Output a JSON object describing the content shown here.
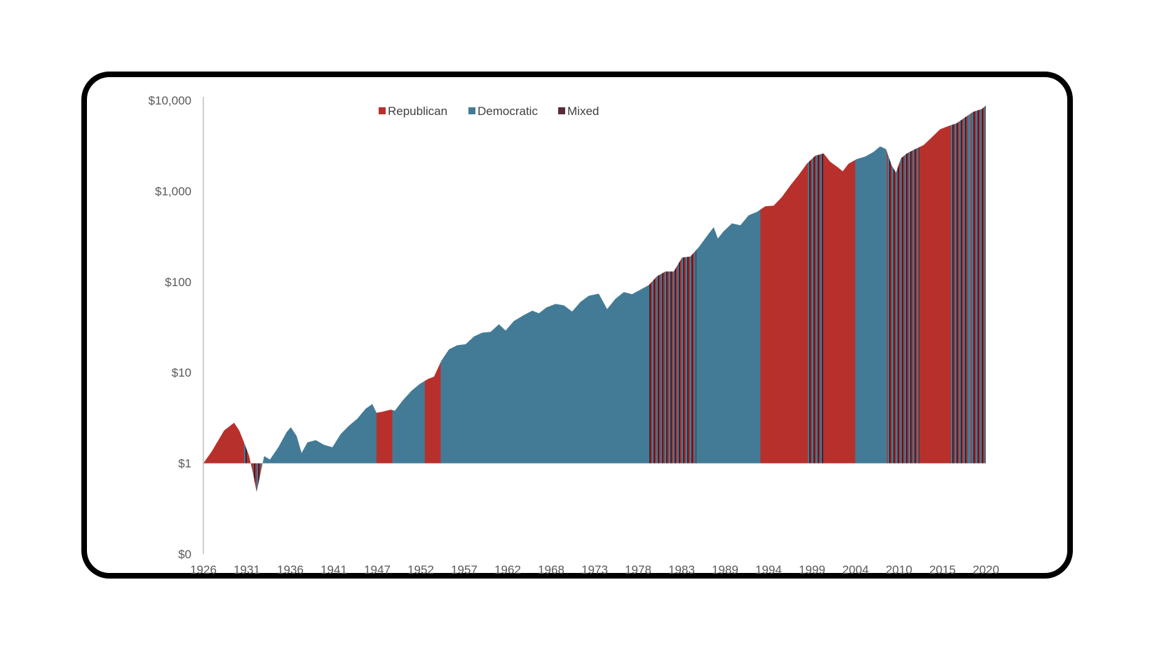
{
  "chart_data": {
    "type": "area",
    "title": "",
    "xlabel": "",
    "ylabel": "",
    "y_scale": "log",
    "ylim": [
      0.1,
      10000
    ],
    "y_ticks": [
      {
        "value": 10000,
        "label": "$10,000"
      },
      {
        "value": 1000,
        "label": "$1,000"
      },
      {
        "value": 100,
        "label": "$100"
      },
      {
        "value": 10,
        "label": "$10"
      },
      {
        "value": 1,
        "label": "$1"
      },
      {
        "value": 0.1,
        "label": "$0"
      }
    ],
    "x_ticks": [
      "1926",
      "1931",
      "1936",
      "1941",
      "1947",
      "1952",
      "1957",
      "1962",
      "1968",
      "1973",
      "1978",
      "1983",
      "1989",
      "1994",
      "1999",
      "2004",
      "2010",
      "2015",
      "2020"
    ],
    "x_range": [
      1926,
      2020
    ],
    "legend": {
      "placement": "top-center",
      "items": [
        {
          "name": "Republican",
          "color": "#b8302c"
        },
        {
          "name": "Democratic",
          "color": "#437b96"
        },
        {
          "name": "Mixed",
          "color": "#5a2a38"
        }
      ]
    },
    "series_points": [
      [
        1926.0,
        1.0
      ],
      [
        1927.0,
        1.35
      ],
      [
        1928.5,
        2.3
      ],
      [
        1929.7,
        2.8
      ],
      [
        1930.3,
        2.3
      ],
      [
        1931.0,
        1.6
      ],
      [
        1931.5,
        1.2
      ],
      [
        1932.0,
        0.75
      ],
      [
        1932.4,
        0.48
      ],
      [
        1932.9,
        0.8
      ],
      [
        1933.3,
        1.2
      ],
      [
        1934.0,
        1.1
      ],
      [
        1935.0,
        1.5
      ],
      [
        1936.0,
        2.2
      ],
      [
        1936.5,
        2.5
      ],
      [
        1937.2,
        2.0
      ],
      [
        1937.8,
        1.3
      ],
      [
        1938.5,
        1.7
      ],
      [
        1939.5,
        1.8
      ],
      [
        1940.5,
        1.6
      ],
      [
        1941.5,
        1.5
      ],
      [
        1942.5,
        2.1
      ],
      [
        1943.5,
        2.6
      ],
      [
        1944.5,
        3.1
      ],
      [
        1945.5,
        4.0
      ],
      [
        1946.3,
        4.5
      ],
      [
        1946.8,
        3.6
      ],
      [
        1947.5,
        3.7
      ],
      [
        1948.5,
        3.9
      ],
      [
        1949.0,
        3.8
      ],
      [
        1950.0,
        5.0
      ],
      [
        1951.0,
        6.3
      ],
      [
        1952.0,
        7.5
      ],
      [
        1953.0,
        8.5
      ],
      [
        1953.7,
        9.0
      ],
      [
        1954.6,
        13.5
      ],
      [
        1955.5,
        18.0
      ],
      [
        1956.5,
        20.0
      ],
      [
        1957.5,
        20.5
      ],
      [
        1958.5,
        25.0
      ],
      [
        1959.5,
        27.5
      ],
      [
        1960.5,
        28.0
      ],
      [
        1961.5,
        34.0
      ],
      [
        1962.3,
        29.0
      ],
      [
        1963.3,
        37.0
      ],
      [
        1964.5,
        43.0
      ],
      [
        1965.5,
        48.0
      ],
      [
        1966.3,
        45.0
      ],
      [
        1967.2,
        52.0
      ],
      [
        1968.3,
        57.0
      ],
      [
        1969.3,
        55.0
      ],
      [
        1970.3,
        47.0
      ],
      [
        1971.3,
        60.0
      ],
      [
        1972.3,
        70.0
      ],
      [
        1973.5,
        74.0
      ],
      [
        1974.5,
        50.0
      ],
      [
        1975.5,
        65.0
      ],
      [
        1976.5,
        77.0
      ],
      [
        1977.5,
        73.0
      ],
      [
        1978.5,
        82.0
      ],
      [
        1979.5,
        92.0
      ],
      [
        1980.5,
        115.0
      ],
      [
        1981.5,
        130.0
      ],
      [
        1982.5,
        130.0
      ],
      [
        1983.5,
        185.0
      ],
      [
        1984.5,
        190.0
      ],
      [
        1985.5,
        240.0
      ],
      [
        1986.5,
        320.0
      ],
      [
        1987.3,
        400.0
      ],
      [
        1987.8,
        300.0
      ],
      [
        1988.5,
        360.0
      ],
      [
        1989.5,
        440.0
      ],
      [
        1990.5,
        420.0
      ],
      [
        1991.5,
        540.0
      ],
      [
        1992.5,
        590.0
      ],
      [
        1993.5,
        680.0
      ],
      [
        1994.5,
        690.0
      ],
      [
        1995.5,
        860.0
      ],
      [
        1996.5,
        1150.0
      ],
      [
        1997.5,
        1500.0
      ],
      [
        1998.5,
        2000.0
      ],
      [
        1999.5,
        2450.0
      ],
      [
        2000.5,
        2600.0
      ],
      [
        2001.3,
        2100.0
      ],
      [
        2002.3,
        1800.0
      ],
      [
        2002.8,
        1650.0
      ],
      [
        2003.5,
        2000.0
      ],
      [
        2004.5,
        2250.0
      ],
      [
        2005.5,
        2400.0
      ],
      [
        2006.5,
        2700.0
      ],
      [
        2007.3,
        3100.0
      ],
      [
        2008.0,
        2900.0
      ],
      [
        2008.7,
        1900.0
      ],
      [
        2009.2,
        1600.0
      ],
      [
        2009.8,
        2300.0
      ],
      [
        2010.5,
        2600.0
      ],
      [
        2011.5,
        2900.0
      ],
      [
        2012.5,
        3200.0
      ],
      [
        2013.5,
        3900.0
      ],
      [
        2014.5,
        4800.0
      ],
      [
        2015.5,
        5200.0
      ],
      [
        2016.5,
        5600.0
      ],
      [
        2017.5,
        6500.0
      ],
      [
        2018.5,
        7500.0
      ],
      [
        2019.5,
        8000.0
      ],
      [
        2020.0,
        8800.0
      ]
    ],
    "segments": [
      {
        "start": 1926.0,
        "end": 1930.8,
        "party": "Republican"
      },
      {
        "start": 1930.8,
        "end": 1931.3,
        "party": "Mixed"
      },
      {
        "start": 1931.3,
        "end": 1932.0,
        "party": "Republican"
      },
      {
        "start": 1932.0,
        "end": 1933.0,
        "party": "Mixed"
      },
      {
        "start": 1933.0,
        "end": 1946.8,
        "party": "Democratic"
      },
      {
        "start": 1946.8,
        "end": 1948.7,
        "party": "Republican"
      },
      {
        "start": 1948.7,
        "end": 1952.6,
        "party": "Democratic"
      },
      {
        "start": 1952.6,
        "end": 1954.5,
        "party": "Republican"
      },
      {
        "start": 1954.5,
        "end": 1979.4,
        "party": "Democratic"
      },
      {
        "start": 1979.4,
        "end": 1985.2,
        "party": "Mixed"
      },
      {
        "start": 1985.2,
        "end": 1992.9,
        "party": "Democratic"
      },
      {
        "start": 1992.9,
        "end": 1998.6,
        "party": "Republican"
      },
      {
        "start": 1998.6,
        "end": 2000.5,
        "party": "Mixed"
      },
      {
        "start": 2000.5,
        "end": 2004.3,
        "party": "Republican"
      },
      {
        "start": 2004.3,
        "end": 2008.1,
        "party": "Democratic"
      },
      {
        "start": 2008.1,
        "end": 2012.0,
        "party": "Mixed"
      },
      {
        "start": 2012.0,
        "end": 2015.8,
        "party": "Republican"
      },
      {
        "start": 2015.8,
        "end": 2017.8,
        "party": "Mixed"
      },
      {
        "start": 2017.8,
        "end": 2018.2,
        "party": "Democratic"
      },
      {
        "start": 2018.2,
        "end": 2020.0,
        "party": "Mixed"
      }
    ]
  }
}
